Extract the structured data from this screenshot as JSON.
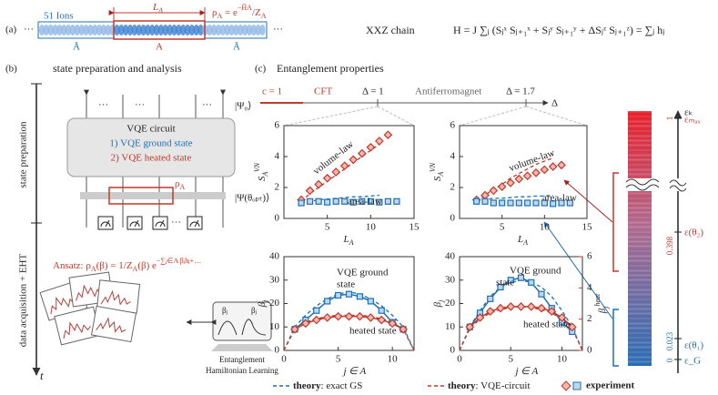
{
  "panel_a": {
    "label": "(a)",
    "ions": "51 Ions",
    "dots": [
      "···",
      "···"
    ],
    "length": [
      "L",
      "A"
    ],
    "rho": [
      "ρ",
      "A",
      " = e",
      "−H̃",
      "A",
      "/Z",
      "A"
    ],
    "abar": [
      "Ā",
      "Ā"
    ],
    "a": "A",
    "chain": "XXZ chain",
    "hamiltonian": "H = J ∑ⱼ (Sⱼˣ Sⱼ₊₁ˣ + Sⱼʸ Sⱼ₊₁ʸ + ΔSⱼᶻ Sⱼ₊₁ᶻ) = ∑ⱼ hⱼ"
  },
  "panel_b": {
    "label": "(b)",
    "title": "state preparation and analysis",
    "time_axis": [
      "state preparation",
      "data acquisition + EHT",
      "t"
    ],
    "circuit": [
      "VQE circuit",
      "1) VQE ground state",
      "2) VQE heated state"
    ],
    "psi0": "|Ψ₀⟩",
    "psi_opt": "|Ψ(θₒₚₜ)⟩",
    "rho_a": [
      "ρ",
      "A"
    ],
    "ansatz": [
      "Ansatz: ρ",
      "A",
      "(β) = ",
      "1/Z",
      "A",
      "(β) e",
      "−∑ⱼ∈A βⱼhⱼ+…"
    ],
    "inset": [
      "βⱼ",
      "βⱼ"
    ],
    "learning": [
      "Entanglement",
      "Hamiltonian Learning"
    ]
  },
  "panel_c": {
    "label": "(c)",
    "title": "Entanglement properties",
    "phase": [
      "c = 1",
      "CFT",
      "Δ = 1",
      "Antiferromagnet",
      "Δ = 1.7",
      "Δ"
    ],
    "energy_labels": [
      "εₖ",
      "εₘₐₓ",
      "ε(θ₂)",
      "ε(θ₁)",
      "ε_G"
    ],
    "energy_ticks": [
      1,
      0.398,
      0.023,
      0
    ]
  },
  "legend": [
    {
      "bold": "theory",
      "text": ": exact GS",
      "color": "#1f6fb2"
    },
    {
      "bold": "theory",
      "text": ": VQE-circuit",
      "color": "#c0392b"
    },
    {
      "text": "experiment"
    }
  ],
  "chart_data": [
    {
      "type": "line",
      "xlim": [
        0,
        15
      ],
      "xticks": [
        5,
        10,
        15
      ],
      "ylim": [
        0,
        6
      ],
      "yticks": [
        0,
        2,
        4,
        6
      ],
      "x_label": [
        "L",
        "A"
      ],
      "y_label": [
        "S",
        "A",
        "VN"
      ],
      "annotations": [
        "volume-law",
        "area-law"
      ],
      "series": [
        {
          "style": "dashed",
          "color": "#c0392b",
          "x": [
            2,
            3,
            4,
            5,
            6,
            7,
            8,
            9,
            10,
            11
          ],
          "values": [
            1.1,
            1.6,
            2.0,
            2.4,
            2.8,
            3.2,
            3.6,
            4.0,
            4.4,
            4.8
          ]
        },
        {
          "style": "dashed",
          "color": "#1f6fb2",
          "x": [
            2,
            3,
            4,
            5,
            6,
            7,
            8,
            9,
            10,
            11
          ],
          "values": [
            1.0,
            1.1,
            1.2,
            1.25,
            1.3,
            1.35,
            1.4,
            1.4,
            1.45,
            1.5
          ]
        },
        {
          "style": "markers",
          "marker": "diamond",
          "color": "#c0392b",
          "x": [
            2,
            3,
            4,
            5,
            6,
            7,
            8,
            9,
            10,
            11,
            12
          ],
          "values": [
            1.2,
            1.8,
            2.2,
            2.6,
            3.0,
            3.4,
            3.8,
            4.2,
            4.6,
            5.0,
            5.4
          ]
        },
        {
          "style": "markers",
          "marker": "square",
          "color": "#1f6fb2",
          "x": [
            2,
            3,
            4,
            5,
            6,
            7,
            8,
            9,
            10,
            11,
            12,
            13
          ],
          "values": [
            1.0,
            1.1,
            1.1,
            1.05,
            1.1,
            1.1,
            1.05,
            1.1,
            1.1,
            1.05,
            1.1,
            1.1
          ]
        }
      ]
    },
    {
      "type": "line",
      "xlim": [
        0,
        15
      ],
      "xticks": [
        5,
        10,
        15
      ],
      "ylim": [
        0,
        6
      ],
      "yticks": [
        0,
        2,
        4,
        6
      ],
      "x_label": [
        "L",
        "A"
      ],
      "y_label": [
        "S",
        "A",
        "VN"
      ],
      "annotations": [
        "volume-law",
        "area-law"
      ],
      "series": [
        {
          "style": "dashed",
          "color": "#c0392b",
          "x": [
            2,
            3,
            4,
            5,
            6,
            7,
            8,
            9,
            10,
            11
          ],
          "values": [
            1.1,
            1.5,
            1.9,
            2.2,
            2.6,
            2.9,
            3.2,
            3.5,
            3.7,
            3.9
          ]
        },
        {
          "style": "dashed",
          "color": "#1f6fb2",
          "x": [
            2,
            3,
            4,
            5,
            6,
            7,
            8,
            9,
            10,
            11
          ],
          "values": [
            1.1,
            1.2,
            1.3,
            1.3,
            1.35,
            1.4,
            1.4,
            1.45,
            1.45,
            1.5
          ]
        },
        {
          "style": "markers",
          "marker": "diamond",
          "color": "#c0392b",
          "x": [
            2,
            3,
            4,
            5,
            6,
            7,
            8,
            9,
            10,
            11,
            12
          ],
          "values": [
            1.2,
            1.5,
            1.8,
            2.05,
            2.3,
            2.55,
            2.75,
            2.95,
            3.15,
            3.35,
            3.45
          ]
        },
        {
          "style": "markers",
          "marker": "square",
          "color": "#1f6fb2",
          "x": [
            2,
            3,
            4,
            5,
            6,
            7,
            8,
            9,
            10,
            11,
            12,
            13
          ],
          "values": [
            1.1,
            1.1,
            1.0,
            1.0,
            1.0,
            1.0,
            1.0,
            1.0,
            1.0,
            0.95,
            1.0,
            1.0
          ]
        }
      ]
    },
    {
      "type": "line",
      "xlim": [
        0,
        12
      ],
      "xticks": [
        0,
        5,
        10
      ],
      "ylim": [
        0,
        40
      ],
      "yticks": [
        0,
        10,
        20,
        30,
        40
      ],
      "x_label": [
        "j ∈ A"
      ],
      "y_label": [
        "β",
        "j"
      ],
      "annotations": [
        "VQE ground",
        "state",
        "heated state"
      ],
      "series": [
        {
          "style": "dashed",
          "color": "#1f6fb2",
          "x": [
            0,
            1,
            2,
            3,
            4,
            5,
            6,
            7,
            8,
            9,
            10,
            11,
            12
          ],
          "values": [
            0,
            10,
            15,
            19,
            22,
            24,
            25,
            24,
            22,
            19,
            15,
            10,
            0
          ]
        },
        {
          "style": "dashed",
          "color": "#c0392b",
          "x": [
            0,
            1,
            2,
            3,
            4,
            5,
            6,
            7,
            8,
            9,
            10,
            11,
            12
          ],
          "values": [
            0,
            9,
            12,
            13.5,
            14.5,
            15,
            15,
            15,
            14.5,
            13.5,
            12,
            9,
            0
          ]
        },
        {
          "style": "line-markers",
          "marker": "square",
          "color": "#1f6fb2",
          "x": [
            1,
            2,
            3,
            4,
            5,
            6,
            7,
            8,
            9,
            10,
            11
          ],
          "values": [
            9,
            13,
            17,
            21,
            23.5,
            24,
            23,
            21,
            17,
            12,
            9
          ]
        },
        {
          "style": "line-markers",
          "marker": "diamond",
          "color": "#c0392b",
          "x": [
            1,
            2,
            3,
            4,
            5,
            6,
            7,
            8,
            9,
            10,
            11
          ],
          "values": [
            9,
            11.5,
            13,
            14,
            14.5,
            14.5,
            14.5,
            14,
            13,
            11.5,
            9
          ]
        }
      ]
    },
    {
      "type": "line",
      "xlim": [
        0,
        12
      ],
      "xticks": [
        0,
        5,
        10
      ],
      "ylim": [
        0,
        40
      ],
      "yticks": [
        0,
        10,
        20,
        30,
        40
      ],
      "y2lim": [
        0,
        6
      ],
      "y2ticks": [
        0,
        2,
        4,
        6
      ],
      "x_label": [
        "j ∈ A"
      ],
      "y_label": [
        "β",
        "j"
      ],
      "y2_label": [
        "β",
        "j",
        "heat"
      ],
      "annotations": [
        "VQE ground",
        "state",
        "heated state"
      ],
      "series": [
        {
          "style": "dashed",
          "color": "#1f6fb2",
          "x": [
            0,
            1,
            2,
            3,
            4,
            5,
            6,
            7,
            8,
            9,
            10,
            11,
            12
          ],
          "values": [
            0,
            10,
            17,
            23,
            27,
            29,
            30,
            29,
            27,
            23,
            17,
            10,
            0
          ]
        },
        {
          "style": "dashed",
          "color": "#c0392b",
          "axis": "y2",
          "x": [
            0,
            1,
            2,
            3,
            4,
            5,
            6,
            7,
            8,
            9,
            10,
            11,
            12
          ],
          "values": [
            0,
            1.4,
            2.0,
            2.4,
            2.6,
            2.75,
            2.8,
            2.75,
            2.6,
            2.4,
            2.0,
            1.4,
            0
          ]
        },
        {
          "style": "line-markers",
          "marker": "square",
          "color": "#1f6fb2",
          "x": [
            1,
            2,
            3,
            4,
            5,
            6,
            7,
            8,
            9,
            10,
            11
          ],
          "values": [
            10,
            16,
            22,
            27,
            30,
            31,
            29,
            24,
            18,
            12,
            8
          ]
        },
        {
          "style": "line-markers",
          "marker": "diamond",
          "color": "#c0392b",
          "axis": "y2",
          "x": [
            1,
            2,
            3,
            4,
            5,
            6,
            7,
            8,
            9,
            10,
            11
          ],
          "values": [
            1.5,
            2.1,
            2.5,
            2.7,
            2.8,
            2.8,
            2.8,
            2.7,
            2.5,
            2.1,
            1.5
          ]
        }
      ]
    }
  ]
}
